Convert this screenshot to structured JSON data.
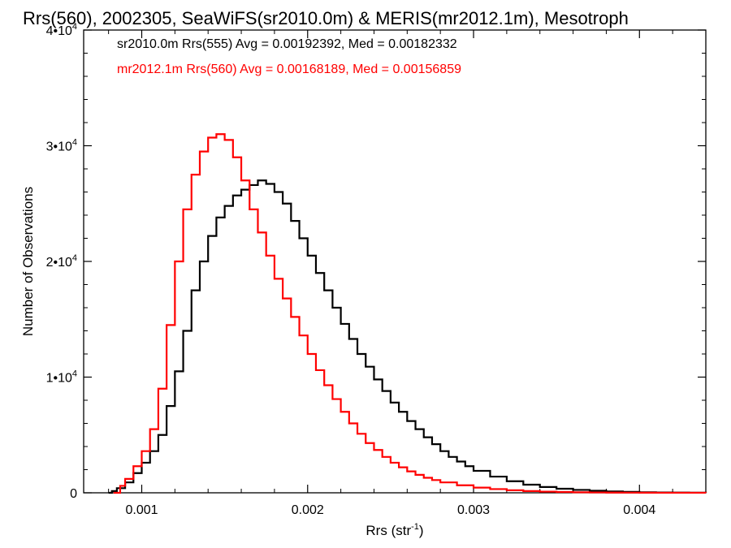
{
  "chart_data": {
    "type": "line",
    "title": "Rrs(560), 2002305, SeaWiFS(sr2010.0m) & MERIS(mr2012.1m), Mesotroph",
    "xlabel": "Rrs (str",
    "xlabel_sup": "-1",
    "xlabel_suffix": ")",
    "ylabel": "Number of Observations",
    "xlim": [
      0.00065,
      0.0044
    ],
    "ylim": [
      0,
      40000
    ],
    "xticks": [
      {
        "value": 0.001,
        "label": "0.001"
      },
      {
        "value": 0.002,
        "label": "0.002"
      },
      {
        "value": 0.003,
        "label": "0.003"
      },
      {
        "value": 0.004,
        "label": "0.004"
      }
    ],
    "yticks": [
      {
        "value": 0,
        "label": "0"
      },
      {
        "value": 10000,
        "label": "1•10",
        "sup": "4"
      },
      {
        "value": 20000,
        "label": "2•10",
        "sup": "4"
      },
      {
        "value": 30000,
        "label": "3•10",
        "sup": "4"
      },
      {
        "value": 40000,
        "label": "4•10",
        "sup": "4"
      }
    ],
    "grid": false,
    "legend_placement": "top-left",
    "series": [
      {
        "name": "sr2010.0m Rrs(555) Avg = 0.00192392, Med = 0.00182332",
        "color": "#000000",
        "step": true,
        "points": [
          [
            0.0008,
            0
          ],
          [
            0.00082,
            150
          ],
          [
            0.00085,
            400
          ],
          [
            0.0009,
            900
          ],
          [
            0.00095,
            1700
          ],
          [
            0.001,
            2600
          ],
          [
            0.00105,
            3600
          ],
          [
            0.0011,
            5000
          ],
          [
            0.00115,
            7500
          ],
          [
            0.0012,
            10500
          ],
          [
            0.00125,
            14000
          ],
          [
            0.0013,
            17500
          ],
          [
            0.00135,
            20000
          ],
          [
            0.0014,
            22200
          ],
          [
            0.00145,
            23800
          ],
          [
            0.0015,
            24800
          ],
          [
            0.00155,
            25700
          ],
          [
            0.0016,
            26200
          ],
          [
            0.00165,
            26600
          ],
          [
            0.0017,
            27000
          ],
          [
            0.00175,
            26700
          ],
          [
            0.0018,
            26000
          ],
          [
            0.00185,
            25000
          ],
          [
            0.0019,
            23500
          ],
          [
            0.00195,
            22000
          ],
          [
            0.002,
            20500
          ],
          [
            0.00205,
            19000
          ],
          [
            0.0021,
            17500
          ],
          [
            0.00215,
            16000
          ],
          [
            0.0022,
            14600
          ],
          [
            0.00225,
            13300
          ],
          [
            0.0023,
            12000
          ],
          [
            0.00235,
            10900
          ],
          [
            0.0024,
            9800
          ],
          [
            0.00245,
            8800
          ],
          [
            0.0025,
            7800
          ],
          [
            0.00255,
            7000
          ],
          [
            0.0026,
            6200
          ],
          [
            0.00265,
            5500
          ],
          [
            0.0027,
            4800
          ],
          [
            0.00275,
            4200
          ],
          [
            0.0028,
            3600
          ],
          [
            0.00285,
            3100
          ],
          [
            0.0029,
            2700
          ],
          [
            0.00295,
            2300
          ],
          [
            0.003,
            1900
          ],
          [
            0.0031,
            1400
          ],
          [
            0.0032,
            1000
          ],
          [
            0.0033,
            700
          ],
          [
            0.0034,
            500
          ],
          [
            0.0035,
            350
          ],
          [
            0.0036,
            250
          ],
          [
            0.0037,
            180
          ],
          [
            0.0038,
            120
          ],
          [
            0.0039,
            80
          ],
          [
            0.004,
            50
          ],
          [
            0.0041,
            30
          ],
          [
            0.0042,
            20
          ],
          [
            0.0043,
            10
          ],
          [
            0.0044,
            5
          ]
        ]
      },
      {
        "name": "mr2012.1m Rrs(560) Avg = 0.00168189, Med = 0.00156859",
        "color": "#ff0000",
        "step": true,
        "points": [
          [
            0.00083,
            0
          ],
          [
            0.00087,
            600
          ],
          [
            0.0009,
            1200
          ],
          [
            0.00095,
            2300
          ],
          [
            0.001,
            3600
          ],
          [
            0.00105,
            5500
          ],
          [
            0.0011,
            9000
          ],
          [
            0.00115,
            14500
          ],
          [
            0.0012,
            20000
          ],
          [
            0.00125,
            24500
          ],
          [
            0.0013,
            27500
          ],
          [
            0.00135,
            29500
          ],
          [
            0.0014,
            30700
          ],
          [
            0.00145,
            31000
          ],
          [
            0.0015,
            30500
          ],
          [
            0.00155,
            29000
          ],
          [
            0.0016,
            27000
          ],
          [
            0.00165,
            24500
          ],
          [
            0.0017,
            22500
          ],
          [
            0.00175,
            20500
          ],
          [
            0.0018,
            18500
          ],
          [
            0.00185,
            16800
          ],
          [
            0.0019,
            15200
          ],
          [
            0.00195,
            13600
          ],
          [
            0.002,
            12000
          ],
          [
            0.00205,
            10600
          ],
          [
            0.0021,
            9300
          ],
          [
            0.00215,
            8100
          ],
          [
            0.0022,
            7000
          ],
          [
            0.00225,
            6000
          ],
          [
            0.0023,
            5100
          ],
          [
            0.00235,
            4300
          ],
          [
            0.0024,
            3700
          ],
          [
            0.00245,
            3100
          ],
          [
            0.0025,
            2600
          ],
          [
            0.00255,
            2200
          ],
          [
            0.0026,
            1850
          ],
          [
            0.00265,
            1550
          ],
          [
            0.0027,
            1300
          ],
          [
            0.00275,
            1100
          ],
          [
            0.0028,
            900
          ],
          [
            0.0029,
            650
          ],
          [
            0.003,
            450
          ],
          [
            0.0031,
            320
          ],
          [
            0.0032,
            220
          ],
          [
            0.0033,
            150
          ],
          [
            0.0034,
            100
          ],
          [
            0.0035,
            70
          ],
          [
            0.0036,
            45
          ],
          [
            0.0037,
            30
          ],
          [
            0.0038,
            20
          ],
          [
            0.0039,
            12
          ],
          [
            0.004,
            8
          ],
          [
            0.0041,
            5
          ],
          [
            0.0042,
            3
          ],
          [
            0.0044,
            1
          ]
        ]
      }
    ]
  }
}
